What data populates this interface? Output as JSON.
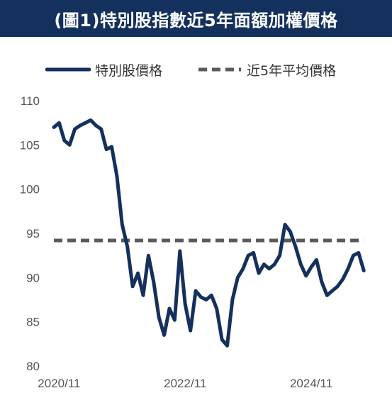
{
  "title": "(圖1)特別股指數近5年面額加權價格",
  "colors": {
    "header_bg": "#14305c",
    "series_line": "#14305c",
    "average_line": "#595959"
  },
  "chart_data": {
    "type": "line",
    "title": "(圖1)特別股指數近5年面額加權價格",
    "xlabel": "",
    "ylabel": "",
    "ylim": [
      80,
      110
    ],
    "yticks": [
      80,
      85,
      90,
      95,
      100,
      105,
      110
    ],
    "xlim": [
      "2020-10",
      "2025-11"
    ],
    "xticks": [
      "2020/11",
      "2022/11",
      "2024/11"
    ],
    "grid": false,
    "legend_position": "top",
    "series": [
      {
        "name": "特別股價格",
        "style": "solid",
        "x": [
          "2020-10",
          "2020-11",
          "2020-12",
          "2021-01",
          "2021-02",
          "2021-03",
          "2021-04",
          "2021-05",
          "2021-06",
          "2021-07",
          "2021-08",
          "2021-09",
          "2021-10",
          "2021-11",
          "2021-12",
          "2022-01",
          "2022-02",
          "2022-03",
          "2022-04",
          "2022-05",
          "2022-06",
          "2022-07",
          "2022-08",
          "2022-09",
          "2022-10",
          "2022-11",
          "2022-12",
          "2023-01",
          "2023-02",
          "2023-03",
          "2023-04",
          "2023-05",
          "2023-06",
          "2023-07",
          "2023-08",
          "2023-09",
          "2023-10",
          "2023-11",
          "2023-12",
          "2024-01",
          "2024-02",
          "2024-03",
          "2024-04",
          "2024-05",
          "2024-06",
          "2024-07",
          "2024-08",
          "2024-09",
          "2024-10",
          "2024-11",
          "2024-12",
          "2025-01",
          "2025-02",
          "2025-03",
          "2025-04",
          "2025-05",
          "2025-06",
          "2025-07",
          "2025-08",
          "2025-09"
        ],
        "y": [
          107.0,
          107.5,
          105.5,
          105.0,
          106.8,
          107.2,
          107.5,
          107.8,
          107.2,
          106.8,
          104.5,
          104.8,
          101.5,
          96.0,
          93.5,
          89.0,
          90.5,
          88.0,
          92.5,
          89.5,
          85.5,
          83.5,
          86.5,
          85.2,
          93.0,
          87.0,
          84.0,
          88.5,
          87.8,
          87.5,
          88.0,
          86.5,
          83.0,
          82.3,
          87.5,
          90.0,
          91.0,
          92.5,
          92.8,
          90.5,
          91.5,
          91.0,
          91.5,
          92.5,
          96.0,
          95.2,
          93.5,
          91.5,
          90.2,
          91.2,
          92.0,
          89.5,
          88.0,
          88.5,
          89.0,
          89.8,
          91.0,
          92.5,
          92.8,
          90.8
        ]
      },
      {
        "name": "近5年平均價格",
        "style": "dashed",
        "x": [
          "2020-10",
          "2025-09"
        ],
        "y": [
          94.2,
          94.2
        ]
      }
    ]
  }
}
